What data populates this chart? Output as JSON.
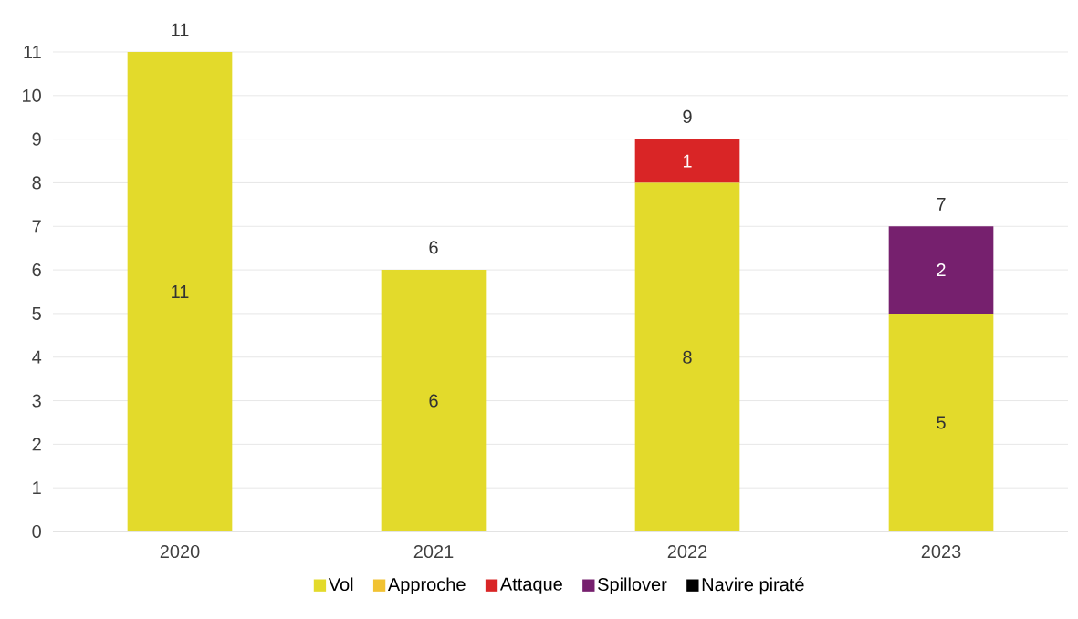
{
  "chart_data": {
    "type": "bar",
    "stacked": true,
    "categories": [
      "2020",
      "2021",
      "2022",
      "2023"
    ],
    "series": [
      {
        "name": "Vol",
        "color": "#e3da2b",
        "values": [
          11,
          6,
          8,
          5
        ],
        "value_labels": [
          "11",
          "6",
          "8",
          "5"
        ]
      },
      {
        "name": "Approche",
        "color": "#f1c232",
        "values": [
          0,
          0,
          0,
          0
        ],
        "value_labels": [
          null,
          null,
          null,
          null
        ]
      },
      {
        "name": "Attaque",
        "color": "#d92526",
        "values": [
          0,
          0,
          1,
          0
        ],
        "value_labels": [
          null,
          null,
          "1",
          null
        ]
      },
      {
        "name": "Spillover",
        "color": "#76206e",
        "values": [
          0,
          0,
          0,
          2
        ],
        "value_labels": [
          null,
          null,
          null,
          "2"
        ]
      },
      {
        "name": "Navire piraté",
        "color": "#000000",
        "values": [
          0,
          0,
          0,
          0
        ],
        "value_labels": [
          null,
          null,
          null,
          null
        ]
      }
    ],
    "totals": [
      "11",
      "6",
      "9",
      "7"
    ],
    "ylim": [
      0,
      11
    ],
    "yticks": [
      0,
      1,
      2,
      3,
      4,
      5,
      6,
      7,
      8,
      9,
      10,
      11
    ],
    "grid": "y",
    "legend": "bottom"
  }
}
